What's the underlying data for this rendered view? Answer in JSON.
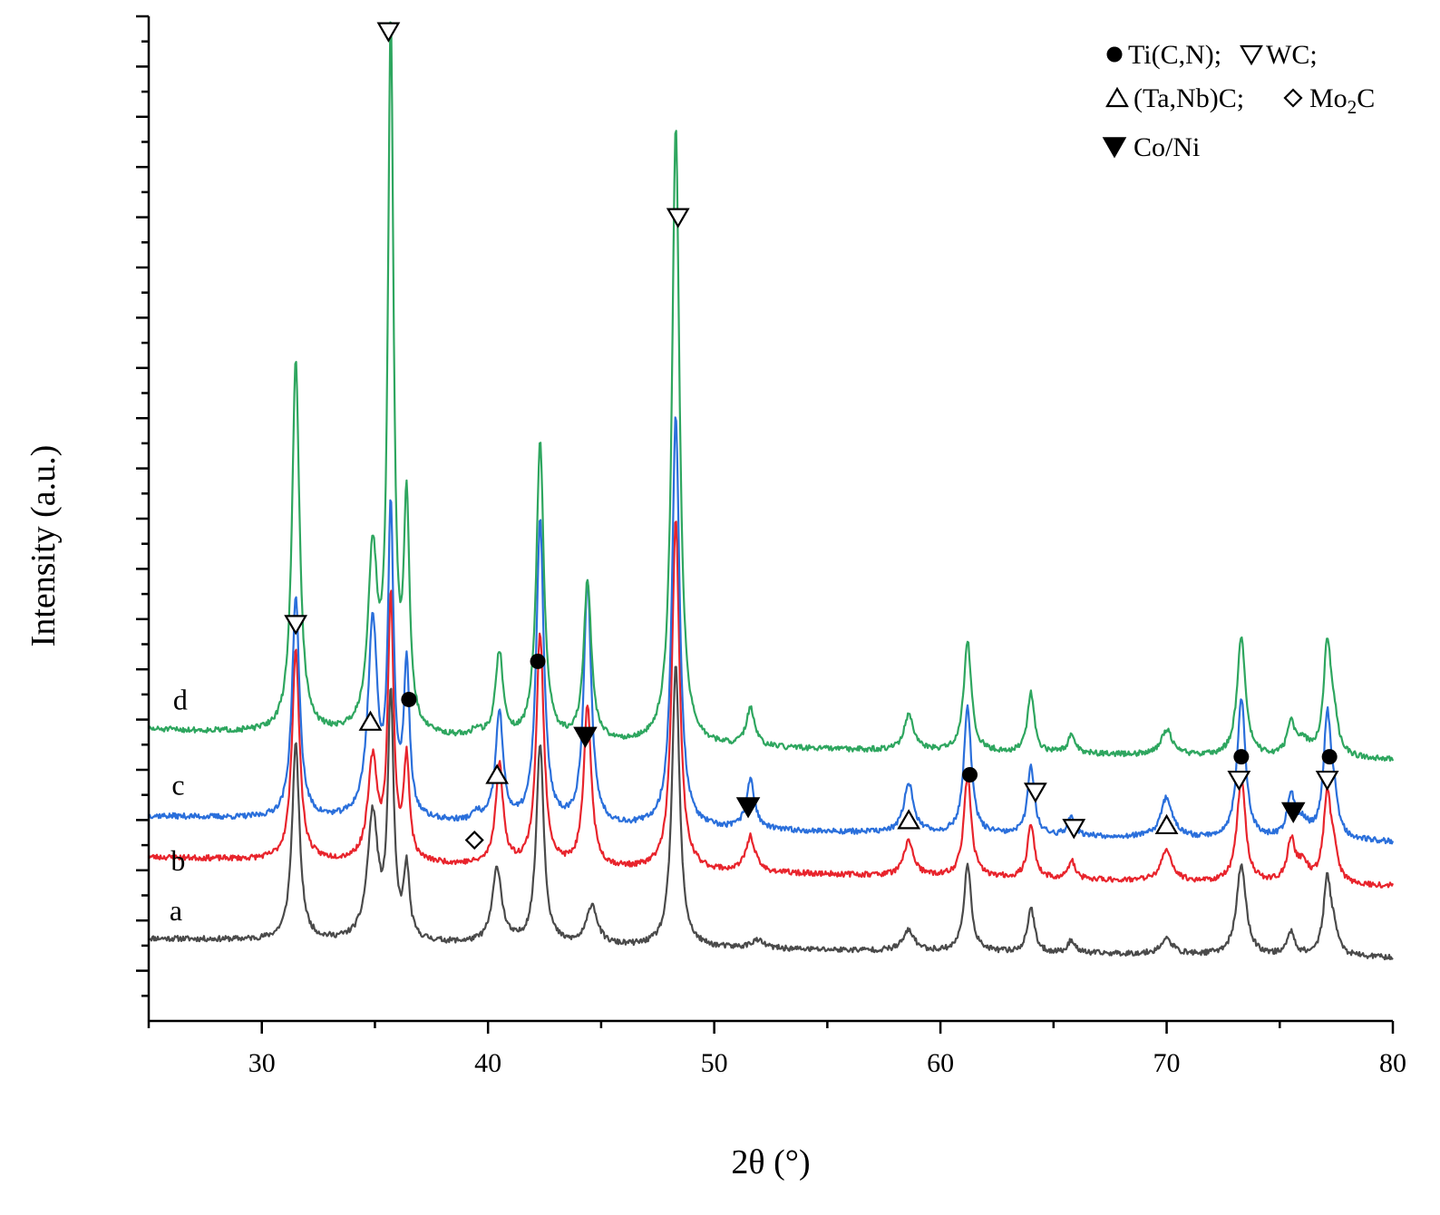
{
  "chart_data": {
    "type": "line",
    "title": "",
    "xlabel": "2θ (°)",
    "ylabel": "Intensity (a.u.)",
    "xlim": [
      25,
      80
    ],
    "ylim": [
      0,
      100
    ],
    "x_ticks": [
      "30",
      "40",
      "50",
      "60",
      "70",
      "80"
    ],
    "x_tick_values": [
      30,
      40,
      50,
      60,
      70,
      80
    ],
    "y_ticks_unlabeled": true,
    "legend": {
      "position": "top-right",
      "items": [
        {
          "symbol": "circle-filled",
          "label": "Ti(C,N);"
        },
        {
          "symbol": "triangle-down-open",
          "label": "WC;"
        },
        {
          "symbol": "triangle-up-open",
          "label": "(Ta,Nb)C;"
        },
        {
          "symbol": "diamond-open",
          "label": "Mo",
          "sub": "2",
          "label_suffix": "C"
        },
        {
          "symbol": "triangle-down-filled",
          "label": "Co/Ni"
        }
      ]
    },
    "series": [
      {
        "name": "a",
        "color": "#4a4a4a",
        "seed": 11,
        "baseline": [
          [
            25,
            8.2
          ],
          [
            50,
            7.2
          ],
          [
            80,
            6.3
          ]
        ],
        "peaks": [
          {
            "x": 31.5,
            "h": 19.5,
            "w": 0.2
          },
          {
            "x": 34.9,
            "h": 12.5,
            "w": 0.28
          },
          {
            "x": 35.7,
            "h": 24.0,
            "w": 0.15
          },
          {
            "x": 36.4,
            "h": 7.0,
            "w": 0.15
          },
          {
            "x": 40.4,
            "h": 7.5,
            "w": 0.25
          },
          {
            "x": 42.3,
            "h": 20.0,
            "w": 0.2
          },
          {
            "x": 44.6,
            "h": 4.0,
            "w": 0.28
          },
          {
            "x": 48.3,
            "h": 28.0,
            "w": 0.2
          },
          {
            "x": 51.9,
            "h": 0.8,
            "w": 0.35
          },
          {
            "x": 58.6,
            "h": 2.0,
            "w": 0.3
          },
          {
            "x": 61.2,
            "h": 8.5,
            "w": 0.2
          },
          {
            "x": 64.0,
            "h": 4.5,
            "w": 0.18
          },
          {
            "x": 65.8,
            "h": 1.3,
            "w": 0.18
          },
          {
            "x": 70.0,
            "h": 1.5,
            "w": 0.32
          },
          {
            "x": 73.3,
            "h": 9.0,
            "w": 0.25
          },
          {
            "x": 75.5,
            "h": 2.3,
            "w": 0.2
          },
          {
            "x": 77.1,
            "h": 7.5,
            "w": 0.2
          },
          {
            "x": 77.4,
            "h": 2.0,
            "w": 0.2
          }
        ]
      },
      {
        "name": "b",
        "color": "#e8242c",
        "seed": 23,
        "baseline": [
          [
            25,
            16.3
          ],
          [
            50,
            14.8
          ],
          [
            80,
            13.4
          ]
        ],
        "peaks": [
          {
            "x": 31.5,
            "h": 21.0,
            "w": 0.2
          },
          {
            "x": 34.9,
            "h": 10.0,
            "w": 0.25
          },
          {
            "x": 35.7,
            "h": 26.0,
            "w": 0.15
          },
          {
            "x": 36.4,
            "h": 10.0,
            "w": 0.15
          },
          {
            "x": 40.5,
            "h": 10.0,
            "w": 0.2
          },
          {
            "x": 42.3,
            "h": 23.0,
            "w": 0.2
          },
          {
            "x": 44.4,
            "h": 16.0,
            "w": 0.2
          },
          {
            "x": 48.3,
            "h": 35.0,
            "w": 0.2
          },
          {
            "x": 51.6,
            "h": 3.5,
            "w": 0.25
          },
          {
            "x": 58.6,
            "h": 3.5,
            "w": 0.25
          },
          {
            "x": 61.2,
            "h": 10.0,
            "w": 0.2
          },
          {
            "x": 64.0,
            "h": 5.5,
            "w": 0.18
          },
          {
            "x": 65.8,
            "h": 1.8,
            "w": 0.18
          },
          {
            "x": 70.0,
            "h": 3.0,
            "w": 0.3
          },
          {
            "x": 73.3,
            "h": 10.5,
            "w": 0.22
          },
          {
            "x": 75.5,
            "h": 4.0,
            "w": 0.2
          },
          {
            "x": 76.0,
            "h": 1.8,
            "w": 0.35
          },
          {
            "x": 77.1,
            "h": 8.5,
            "w": 0.2
          },
          {
            "x": 77.4,
            "h": 2.5,
            "w": 0.2
          }
        ]
      },
      {
        "name": "c",
        "color": "#2a6fdb",
        "seed": 37,
        "baseline": [
          [
            25,
            20.4
          ],
          [
            50,
            19.0
          ],
          [
            80,
            17.8
          ]
        ],
        "peaks": [
          {
            "x": 31.5,
            "h": 22.0,
            "w": 0.2
          },
          {
            "x": 34.9,
            "h": 19.5,
            "w": 0.25
          },
          {
            "x": 35.7,
            "h": 30.0,
            "w": 0.15
          },
          {
            "x": 36.4,
            "h": 15.0,
            "w": 0.15
          },
          {
            "x": 39.5,
            "h": 0.8,
            "w": 0.2
          },
          {
            "x": 40.5,
            "h": 11.0,
            "w": 0.2
          },
          {
            "x": 42.3,
            "h": 30.0,
            "w": 0.2
          },
          {
            "x": 44.4,
            "h": 24.0,
            "w": 0.2
          },
          {
            "x": 48.3,
            "h": 41.0,
            "w": 0.2
          },
          {
            "x": 51.6,
            "h": 5.0,
            "w": 0.22
          },
          {
            "x": 58.6,
            "h": 5.0,
            "w": 0.25
          },
          {
            "x": 61.2,
            "h": 12.5,
            "w": 0.2
          },
          {
            "x": 64.0,
            "h": 7.0,
            "w": 0.18
          },
          {
            "x": 65.8,
            "h": 2.0,
            "w": 0.18
          },
          {
            "x": 70.0,
            "h": 4.0,
            "w": 0.3
          },
          {
            "x": 73.3,
            "h": 14.0,
            "w": 0.22
          },
          {
            "x": 75.5,
            "h": 4.0,
            "w": 0.2
          },
          {
            "x": 76.0,
            "h": 1.6,
            "w": 0.35
          },
          {
            "x": 77.1,
            "h": 12.0,
            "w": 0.2
          },
          {
            "x": 77.4,
            "h": 3.0,
            "w": 0.2
          }
        ]
      },
      {
        "name": "d",
        "color": "#2ea65f",
        "seed": 51,
        "baseline": [
          [
            25,
            29.0
          ],
          [
            50,
            27.2
          ],
          [
            80,
            26.0
          ]
        ],
        "peaks": [
          {
            "x": 31.5,
            "h": 37.0,
            "w": 0.2
          },
          {
            "x": 34.9,
            "h": 17.5,
            "w": 0.25
          },
          {
            "x": 35.7,
            "h": 69.5,
            "w": 0.15
          },
          {
            "x": 36.4,
            "h": 22.0,
            "w": 0.15
          },
          {
            "x": 39.5,
            "h": 0.8,
            "w": 0.2
          },
          {
            "x": 40.5,
            "h": 8.5,
            "w": 0.2
          },
          {
            "x": 42.3,
            "h": 29.5,
            "w": 0.2
          },
          {
            "x": 44.4,
            "h": 16.0,
            "w": 0.2
          },
          {
            "x": 48.3,
            "h": 61.5,
            "w": 0.2
          },
          {
            "x": 51.6,
            "h": 3.8,
            "w": 0.22
          },
          {
            "x": 58.6,
            "h": 3.5,
            "w": 0.25
          },
          {
            "x": 61.2,
            "h": 11.0,
            "w": 0.2
          },
          {
            "x": 64.0,
            "h": 6.0,
            "w": 0.18
          },
          {
            "x": 65.8,
            "h": 2.0,
            "w": 0.18
          },
          {
            "x": 70.0,
            "h": 2.5,
            "w": 0.3
          },
          {
            "x": 73.3,
            "h": 12.0,
            "w": 0.22
          },
          {
            "x": 75.5,
            "h": 3.0,
            "w": 0.2
          },
          {
            "x": 76.0,
            "h": 1.5,
            "w": 0.35
          },
          {
            "x": 77.1,
            "h": 11.0,
            "w": 0.2
          },
          {
            "x": 77.4,
            "h": 3.0,
            "w": 0.2
          }
        ]
      }
    ],
    "peak_markers": [
      {
        "x": 31.5,
        "y": 39.5,
        "symbol": "triangle-down-open"
      },
      {
        "x": 34.8,
        "y": 29.8,
        "symbol": "triangle-up-open"
      },
      {
        "x": 35.6,
        "y": 98.5,
        "symbol": "triangle-down-open"
      },
      {
        "x": 36.5,
        "y": 32.0,
        "symbol": "circle-filled"
      },
      {
        "x": 39.4,
        "y": 18.0,
        "symbol": "diamond-open"
      },
      {
        "x": 40.4,
        "y": 24.5,
        "symbol": "triangle-up-open"
      },
      {
        "x": 42.2,
        "y": 35.8,
        "symbol": "circle-filled"
      },
      {
        "x": 44.3,
        "y": 28.3,
        "symbol": "triangle-down-filled"
      },
      {
        "x": 48.4,
        "y": 80.0,
        "symbol": "triangle-down-open"
      },
      {
        "x": 51.5,
        "y": 21.3,
        "symbol": "triangle-down-filled"
      },
      {
        "x": 58.6,
        "y": 20.0,
        "symbol": "triangle-up-open"
      },
      {
        "x": 61.3,
        "y": 24.5,
        "symbol": "circle-filled"
      },
      {
        "x": 64.2,
        "y": 22.8,
        "symbol": "triangle-down-open"
      },
      {
        "x": 65.9,
        "y": 19.2,
        "symbol": "triangle-down-open"
      },
      {
        "x": 70.0,
        "y": 19.5,
        "symbol": "triangle-up-open"
      },
      {
        "x": 73.3,
        "y": 26.3,
        "symbol": "circle-filled"
      },
      {
        "x": 73.2,
        "y": 24.0,
        "symbol": "triangle-down-open"
      },
      {
        "x": 75.6,
        "y": 20.8,
        "symbol": "triangle-down-filled"
      },
      {
        "x": 77.2,
        "y": 26.3,
        "symbol": "circle-filled"
      },
      {
        "x": 77.1,
        "y": 24.0,
        "symbol": "triangle-down-open"
      }
    ],
    "curve_labels": [
      {
        "text": "d",
        "x": 26.4,
        "y": 31.0
      },
      {
        "text": "c",
        "x": 26.3,
        "y": 22.5
      },
      {
        "text": "b",
        "x": 26.3,
        "y": 15.0
      },
      {
        "text": "a",
        "x": 26.2,
        "y": 10.0
      }
    ]
  }
}
